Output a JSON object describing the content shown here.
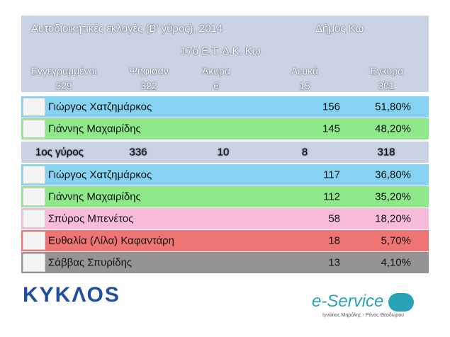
{
  "header": {
    "title": "Αυτοδιοικητικές εκλογές (Β' γύρος), 2014",
    "municipality": "Δήμος Κω",
    "station": "17ο Ε.Τ. Δ.Κ. Κω"
  },
  "stats": {
    "labels": [
      "Εγγεγραμμένοι",
      "Ψήφισαν",
      "Άκυρα",
      "Λευκά",
      "Έγκυρα"
    ],
    "values": [
      529,
      322,
      6,
      15,
      301
    ]
  },
  "round2": [
    {
      "name": "Γιώργος Χατζημάρκος",
      "votes": 156,
      "percent": "51,80%",
      "color": "#86d2f2"
    },
    {
      "name": "Γιάννης Μαχαιρίδης",
      "votes": 145,
      "percent": "48,20%",
      "color": "#8fe88a"
    }
  ],
  "round1": {
    "label": "1ος γύρος",
    "values": [
      336,
      10,
      8,
      318
    ],
    "candidates": [
      {
        "name": "Γιώργος Χατζημάρκος",
        "votes": 117,
        "percent": "36,80%",
        "color": "#86d2f2"
      },
      {
        "name": "Γιάννης Μαχαιρίδης",
        "votes": 112,
        "percent": "35,20%",
        "color": "#8fe88a"
      },
      {
        "name": "Σπύρος Μπενέτος",
        "votes": 58,
        "percent": "18,20%",
        "color": "#f6bcd9"
      },
      {
        "name": "Ευθαλία (Λίλα) Καφαντάρη",
        "votes": 18,
        "percent": "5,70%",
        "color": "#ef7575"
      },
      {
        "name": "Σάββας Σπυρίδης",
        "votes": 13,
        "percent": "4,10%",
        "color": "#949494"
      }
    ]
  },
  "footer": {
    "left_logo": "ΚΥΚΛΟS",
    "right_logo": "e-Service",
    "right_caption": "Ιγνάτιος Μηρόλης - Ρένος Θεοδώρου"
  }
}
